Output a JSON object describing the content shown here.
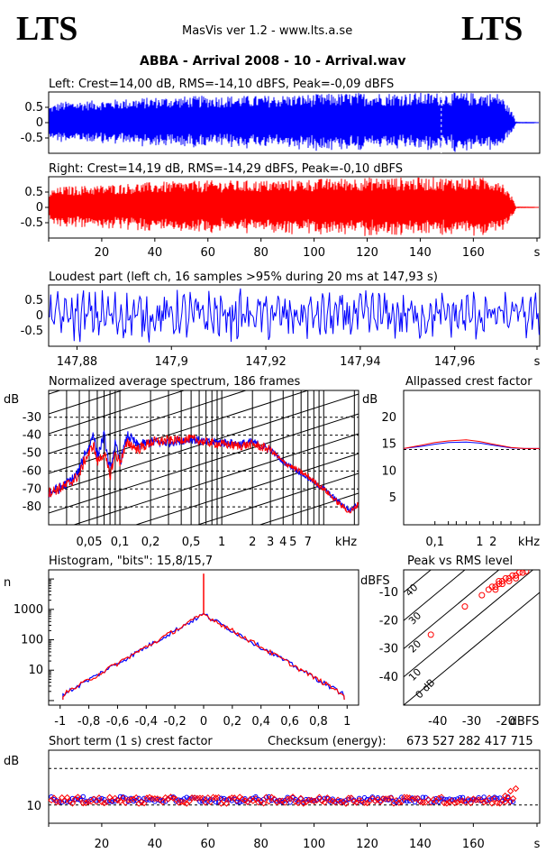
{
  "header": {
    "logo_left": "LTS",
    "logo_right": "LTS",
    "app_title": "MasVis ver 1.2 - www.lts.a.se",
    "file_title": "ABBA - Arrival 2008 - 10 - Arrival.wav"
  },
  "colors": {
    "left": "#0000ff",
    "right": "#ff0000",
    "dashed": "#000000"
  },
  "chart_data": [
    {
      "id": "left-waveform",
      "type": "area",
      "title": "Left: Crest=14,00 dB, RMS=-14,10 dBFS, Peak=-0,09 dBFS",
      "yticks": [
        "0.5",
        "0",
        "-0.5"
      ],
      "ylim": [
        -1,
        1
      ],
      "xlim": [
        0,
        185
      ],
      "envelope": {
        "x": [
          0,
          5,
          20,
          40,
          60,
          80,
          100,
          110,
          120,
          140,
          160,
          170,
          175,
          176,
          185
        ],
        "y": [
          0.55,
          0.7,
          0.75,
          0.85,
          0.9,
          0.9,
          0.95,
          0.98,
          1.0,
          1.0,
          1.0,
          0.98,
          0.3,
          0.01,
          0.0
        ]
      },
      "marker_x": 147.93
    },
    {
      "id": "right-waveform",
      "type": "area",
      "title": "Right: Crest=14,19 dB, RMS=-14,29 dBFS, Peak=-0,10 dBFS",
      "yticks": [
        "0.5",
        "0",
        "-0.5"
      ],
      "ylim": [
        -1,
        1
      ],
      "xlim": [
        0,
        185
      ],
      "xticks": [
        "20",
        "40",
        "60",
        "80",
        "100",
        "120",
        "140",
        "160",
        "s"
      ],
      "envelope": {
        "x": [
          0,
          5,
          20,
          40,
          60,
          80,
          100,
          110,
          120,
          140,
          160,
          170,
          175,
          176,
          185
        ],
        "y": [
          0.55,
          0.7,
          0.75,
          0.85,
          0.9,
          0.9,
          0.95,
          0.98,
          1.0,
          1.0,
          1.0,
          0.98,
          0.3,
          0.01,
          0.0
        ]
      }
    },
    {
      "id": "loudest-part",
      "type": "line",
      "title": "Loudest part (left  ch, 16 samples >95% during 20 ms at 147,93 s)",
      "yticks": [
        "0.5",
        "0",
        "-0.5"
      ],
      "xticks": [
        "147,88",
        "147,9",
        "147,92",
        "147,94",
        "147,96",
        "s"
      ],
      "xlim": [
        147.874,
        147.978
      ]
    },
    {
      "id": "spectrum",
      "type": "line",
      "title": "Normalized average spectrum, 186 frames",
      "ylabel": "dB",
      "yticks": [
        "-30",
        "-40",
        "-50",
        "-60",
        "-70",
        "-80"
      ],
      "xticks": [
        "0,05",
        "0,1",
        "0,2",
        "0,5",
        "1",
        "2",
        "3",
        "4",
        "5",
        "7",
        "kHz"
      ],
      "xlim": [
        0.02,
        22
      ],
      "ylim": [
        -90,
        -15
      ],
      "series": [
        {
          "color": "blue",
          "x": [
            0.02,
            0.025,
            0.03,
            0.035,
            0.04,
            0.045,
            0.05,
            0.055,
            0.06,
            0.07,
            0.08,
            0.09,
            0.1,
            0.12,
            0.15,
            0.2,
            0.3,
            0.5,
            0.7,
            1,
            1.5,
            2,
            3,
            4,
            5,
            7,
            10,
            14,
            18,
            20,
            22
          ],
          "y": [
            -72,
            -70,
            -67,
            -64,
            -60,
            -50,
            -47,
            -38,
            -52,
            -40,
            -60,
            -45,
            -55,
            -40,
            -46,
            -44,
            -44,
            -42,
            -44,
            -44,
            -45,
            -44,
            -48,
            -55,
            -58,
            -64,
            -70,
            -77,
            -82,
            -80,
            -78
          ]
        },
        {
          "color": "red",
          "x": [
            0.02,
            0.025,
            0.03,
            0.035,
            0.04,
            0.045,
            0.05,
            0.055,
            0.06,
            0.07,
            0.08,
            0.09,
            0.1,
            0.12,
            0.15,
            0.2,
            0.3,
            0.5,
            0.7,
            1,
            1.5,
            2,
            3,
            4,
            5,
            7,
            10,
            14,
            18,
            20,
            22
          ],
          "y": [
            -72,
            -70,
            -68,
            -65,
            -62,
            -54,
            -50,
            -45,
            -55,
            -50,
            -63,
            -50,
            -55,
            -44,
            -48,
            -44,
            -43,
            -42,
            -44,
            -45,
            -46,
            -45,
            -48,
            -55,
            -58,
            -63,
            -70,
            -78,
            -83,
            -81,
            -78
          ]
        }
      ]
    },
    {
      "id": "allpassed-crest",
      "type": "line",
      "title": "Allpassed crest factor",
      "ylabel": "dB",
      "yticks": [
        "20",
        "15",
        "10",
        "5"
      ],
      "xticks": [
        "0,1",
        "1",
        "2",
        "kHz"
      ],
      "ylim": [
        0,
        25
      ],
      "xlim": [
        0.02,
        22
      ],
      "dashed_y": 14,
      "series": [
        {
          "color": "blue",
          "x": [
            0.02,
            0.05,
            0.1,
            0.2,
            0.5,
            1,
            2,
            5,
            10,
            22
          ],
          "y": [
            14.2,
            14.6,
            15.0,
            15.3,
            15.4,
            15.2,
            14.8,
            14.3,
            14.2,
            14.2
          ]
        },
        {
          "color": "red",
          "x": [
            0.02,
            0.05,
            0.1,
            0.2,
            0.5,
            1,
            2,
            5,
            10,
            22
          ],
          "y": [
            14.2,
            14.8,
            15.3,
            15.6,
            15.8,
            15.5,
            15.0,
            14.4,
            14.2,
            14.2
          ]
        }
      ]
    },
    {
      "id": "histogram",
      "type": "line",
      "title": "Histogram, \"bits\": 15,8/15,7",
      "ylabel": "n",
      "yticks": [
        "1000",
        "100",
        "10"
      ],
      "xticks": [
        "-1",
        "-0,8",
        "-0,6",
        "-0,4",
        "-0,2",
        "0",
        "0,2",
        "0,4",
        "0,6",
        "0,8",
        "1"
      ],
      "xlim": [
        -1.08,
        1.08
      ],
      "peak": 700,
      "spike": 15000
    },
    {
      "id": "peak-vs-rms",
      "type": "scatter",
      "title": "Peak vs RMS level",
      "ylabel": "dBFS",
      "xlabel": "dBFS",
      "yticks": [
        "-10",
        "-20",
        "-30",
        "-40"
      ],
      "xticks": [
        "-40",
        "-30",
        "-20"
      ],
      "diag_labels": [
        "40",
        "30",
        "20",
        "10",
        "0 dB"
      ],
      "xlim": [
        -50,
        -10
      ],
      "ylim": [
        -50,
        -2
      ],
      "points": [
        [
          -42,
          -25
        ],
        [
          -32,
          -15
        ],
        [
          -27,
          -11
        ],
        [
          -25,
          -9
        ],
        [
          -24,
          -8
        ],
        [
          -23,
          -8
        ],
        [
          -22,
          -7
        ],
        [
          -22,
          -6
        ],
        [
          -21,
          -6
        ],
        [
          -20,
          -5
        ],
        [
          -19,
          -5
        ],
        [
          -18,
          -4
        ],
        [
          -17,
          -4
        ],
        [
          -16,
          -3
        ],
        [
          -15,
          -3
        ],
        [
          -14,
          -2.5
        ],
        [
          -23,
          -9
        ],
        [
          -21,
          -7
        ],
        [
          -19,
          -6
        ],
        [
          -17,
          -5
        ]
      ]
    },
    {
      "id": "short-term-crest",
      "type": "scatter",
      "title": "Short term (1 s) crest factor",
      "checksum_label": "Checksum (energy):",
      "checksum_value": "673 527 282 417 715",
      "ylabel": "dB",
      "yticks": [
        "10"
      ],
      "xticks": [
        "20",
        "40",
        "60",
        "80",
        "100",
        "120",
        "140",
        "160",
        "s"
      ],
      "xlim": [
        0,
        185
      ],
      "ylim": [
        5,
        25
      ],
      "dashed": [
        20,
        10
      ]
    }
  ]
}
